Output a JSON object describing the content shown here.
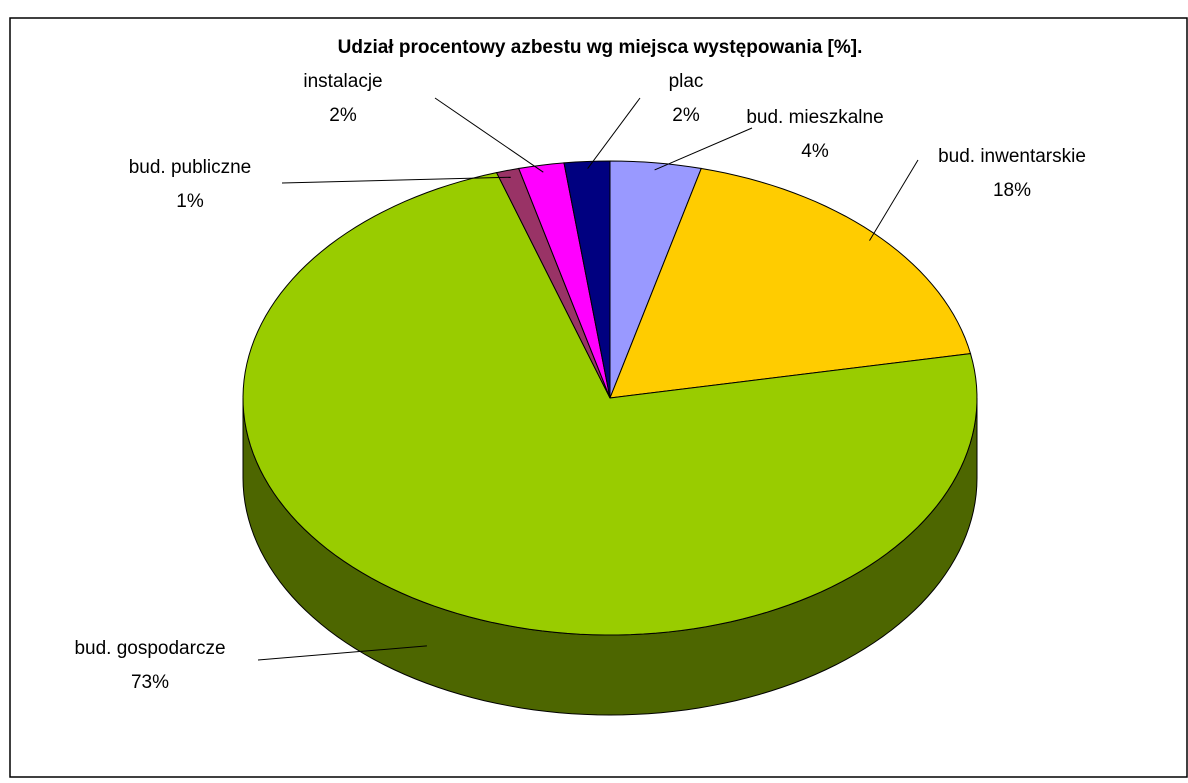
{
  "chart_data": {
    "type": "pie3d",
    "title": "Udział procentowy azbestu wg miejsca występowania [%].",
    "categories": [
      "bud. mieszkalne",
      "bud. inwentarskie",
      "bud. gospodarcze",
      "bud. publiczne",
      "instalacje",
      "plac"
    ],
    "values": [
      4,
      18,
      73,
      1,
      2,
      2
    ],
    "value_labels": [
      "4%",
      "18%",
      "73%",
      "1%",
      "2%",
      "2%"
    ],
    "colors": [
      "#9999ff",
      "#ffcc00",
      "#99cc00",
      "#993366",
      "#ff00ff",
      "#000080"
    ]
  }
}
